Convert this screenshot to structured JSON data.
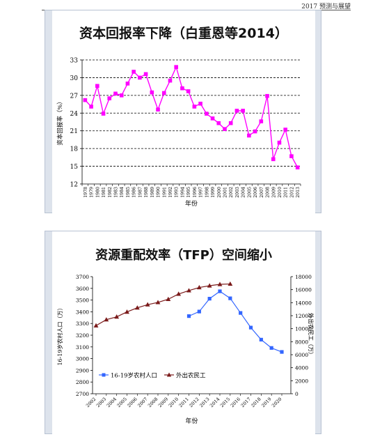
{
  "header": {
    "text": "2017 预测与展望"
  },
  "chart_data": [
    {
      "type": "line",
      "title": "资本回报率下降（白重恩等2014）",
      "xlabel": "年份",
      "ylabel": "资本回报率（%）",
      "ylim": [
        12,
        33
      ],
      "yticks": [
        12,
        15,
        18,
        21,
        24,
        27,
        30,
        33
      ],
      "grid": true,
      "x": [
        1978,
        1979,
        1980,
        1981,
        1982,
        1983,
        1984,
        1985,
        1986,
        1987,
        1988,
        1989,
        1990,
        1991,
        1992,
        1993,
        1994,
        1995,
        1996,
        1997,
        1998,
        1999,
        2000,
        2001,
        2002,
        2003,
        2004,
        2005,
        2006,
        2007,
        2008,
        2009,
        2010,
        2011,
        2012,
        2013
      ],
      "series": [
        {
          "color": "#ff00ff",
          "values": [
            26.2,
            25.1,
            28.6,
            23.9,
            26.5,
            27.3,
            27.0,
            29.0,
            31.0,
            30.0,
            30.6,
            27.5,
            24.6,
            27.4,
            29.5,
            31.8,
            28.2,
            27.7,
            25.1,
            25.6,
            23.9,
            23.1,
            22.3,
            21.3,
            22.3,
            24.4,
            24.4,
            20.2,
            20.9,
            22.6,
            26.9,
            16.2,
            19.0,
            21.2,
            16.7,
            14.8
          ]
        }
      ]
    },
    {
      "type": "line",
      "title": "资源重配效率（TFP）空间缩小",
      "xlabel": "年份",
      "ylabel": "16-19岁农村人口（万）",
      "y2label": "外出农民工（万）",
      "ylim": [
        2700,
        3700
      ],
      "yticks": [
        2700,
        2800,
        2900,
        3000,
        3100,
        3200,
        3300,
        3400,
        3500,
        3600,
        3700
      ],
      "y2lim": [
        0,
        18000
      ],
      "y2ticks": [
        0,
        2000,
        4000,
        6000,
        8000,
        10000,
        12000,
        14000,
        16000,
        18000
      ],
      "legend": "bottom-left",
      "x": [
        2002,
        2003,
        2004,
        2005,
        2006,
        2007,
        2008,
        2009,
        2010,
        2011,
        2012,
        2013,
        2014,
        2015,
        2016,
        2017,
        2018,
        2019,
        2020
      ],
      "xlabels": [
        "2002",
        "2003",
        "2004",
        "2005",
        "2006",
        "2007",
        "2008",
        "2009",
        "2010",
        "2011",
        "2012",
        "2013",
        "2014",
        "2015",
        "2016",
        "2017",
        "2018",
        "2019",
        "2020"
      ],
      "series": [
        {
          "name": "16-19岁农村人口",
          "axis": "left",
          "color": "#3366ff",
          "marker": "square",
          "x": [
            2011,
            2012,
            2013,
            2014,
            2015,
            2016,
            2017,
            2018,
            2019,
            2020
          ],
          "values": [
            3363,
            3402,
            3512,
            3575,
            3515,
            3390,
            3265,
            3162,
            3091,
            3057
          ]
        },
        {
          "name": "外出农民工",
          "axis": "right",
          "color": "#7a1a1a",
          "marker": "triangle",
          "x": [
            2002,
            2003,
            2004,
            2005,
            2006,
            2007,
            2008,
            2009,
            2010,
            2011,
            2012,
            2013,
            2014,
            2015
          ],
          "values": [
            10470,
            11390,
            11823,
            12578,
            13212,
            13697,
            14041,
            14533,
            15335,
            15863,
            16336,
            16610,
            16821,
            16884
          ]
        }
      ]
    }
  ]
}
